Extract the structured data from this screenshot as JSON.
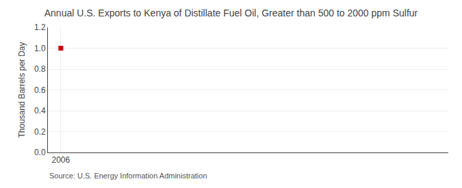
{
  "chart_data": {
    "type": "scatter",
    "title": "Annual U.S. Exports to Kenya of Distillate Fuel Oil, Greater than 500 to 2000 ppm Sulfur",
    "ylabel": "Thousand Barrels per Day",
    "annotations": [
      "Source: U.S. Energy Information Administration"
    ],
    "x": [
      2006
    ],
    "values": [
      1.0
    ],
    "color": "#cc0000",
    "marker": "square",
    "xlim": [
      2005.7,
      2015.0
    ],
    "xticks": [
      2006
    ],
    "ylim": [
      0.0,
      1.2
    ],
    "yticks": [
      {
        "value": 0.0,
        "label": "0.0"
      },
      0.2,
      0.4,
      0.6,
      0.8,
      {
        "value": 1.0,
        "label": "1.0"
      },
      1.2
    ],
    "grid": true
  }
}
